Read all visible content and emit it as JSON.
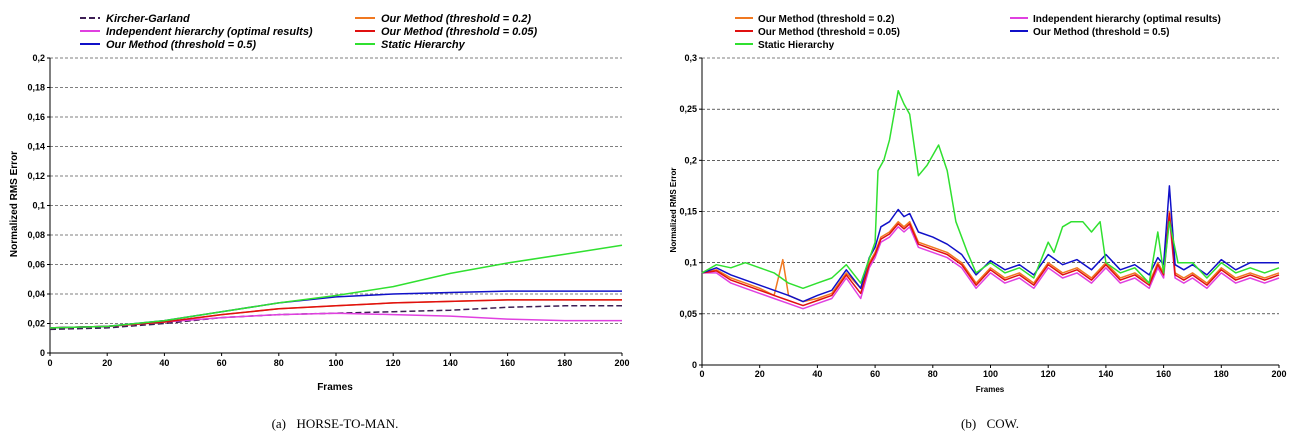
{
  "chart_data": [
    {
      "type": "line",
      "caption_prefix": "(a)",
      "caption": "HORSE-TO-MAN.",
      "xlabel": "Frames",
      "ylabel": "Normalized RMS Error",
      "xlim": [
        0,
        200
      ],
      "ylim": [
        0,
        0.2
      ],
      "xticks": [
        0,
        20,
        40,
        60,
        80,
        100,
        120,
        140,
        160,
        180,
        200
      ],
      "yticks": [
        0,
        0.02,
        0.04,
        0.06,
        0.08,
        0.1,
        0.12,
        0.14,
        0.16,
        0.18,
        0.2
      ],
      "ytick_labels": [
        "0",
        "0,02",
        "0,04",
        "0,06",
        "0,08",
        "0,1",
        "0,12",
        "0,14",
        "0,16",
        "0,18",
        "0,2"
      ],
      "grid": "horizontal dashed",
      "legend_position": "top",
      "legend_style": "italic",
      "series": [
        {
          "name": "Kircher-Garland",
          "color": "#3d1f54",
          "dashed": true,
          "x": [
            0,
            20,
            40,
            60,
            80,
            100,
            120,
            140,
            160,
            180,
            200
          ],
          "y": [
            0.016,
            0.017,
            0.02,
            0.024,
            0.026,
            0.027,
            0.028,
            0.029,
            0.031,
            0.032,
            0.032
          ]
        },
        {
          "name": "Our Method (threshold = 0.2)",
          "color": "#f07820",
          "x": [
            0,
            20,
            40,
            60,
            80,
            100,
            120,
            140,
            160,
            180,
            200
          ],
          "y": [
            0.017,
            0.018,
            0.021,
            0.026,
            0.03,
            0.032,
            0.034,
            0.035,
            0.036,
            0.036,
            0.036
          ]
        },
        {
          "name": "Independent hierarchy (optimal results)",
          "color": "#e040e0",
          "x": [
            0,
            20,
            40,
            60,
            80,
            100,
            120,
            140,
            160,
            180,
            200
          ],
          "y": [
            0.017,
            0.018,
            0.021,
            0.024,
            0.026,
            0.027,
            0.026,
            0.025,
            0.023,
            0.022,
            0.022
          ]
        },
        {
          "name": "Our Method (threshold = 0.05)",
          "color": "#e01010",
          "x": [
            0,
            20,
            40,
            60,
            80,
            100,
            120,
            140,
            160,
            180,
            200
          ],
          "y": [
            0.017,
            0.018,
            0.021,
            0.026,
            0.03,
            0.032,
            0.034,
            0.035,
            0.036,
            0.036,
            0.036
          ]
        },
        {
          "name": "Our Method (threshold = 0.5)",
          "color": "#1010c8",
          "x": [
            0,
            20,
            40,
            60,
            80,
            100,
            120,
            140,
            160,
            180,
            200
          ],
          "y": [
            0.017,
            0.018,
            0.022,
            0.028,
            0.034,
            0.038,
            0.04,
            0.041,
            0.042,
            0.042,
            0.042
          ]
        },
        {
          "name": "Static Hierarchy",
          "color": "#30e030",
          "x": [
            0,
            20,
            40,
            60,
            80,
            100,
            120,
            140,
            160,
            180,
            200
          ],
          "y": [
            0.017,
            0.018,
            0.022,
            0.028,
            0.034,
            0.039,
            0.045,
            0.054,
            0.061,
            0.067,
            0.073
          ]
        }
      ]
    },
    {
      "type": "line",
      "caption_prefix": "(b)",
      "caption": "COW.",
      "xlabel": "Frames",
      "ylabel": "Normalized RMS Error",
      "xlim": [
        0,
        200
      ],
      "ylim": [
        0,
        0.3
      ],
      "xticks": [
        0,
        20,
        40,
        60,
        80,
        100,
        120,
        140,
        160,
        180,
        200
      ],
      "yticks": [
        0,
        0.05,
        0.1,
        0.15,
        0.2,
        0.25,
        0.3
      ],
      "ytick_labels": [
        "0",
        "0,05",
        "0,1",
        "0,15",
        "0,2",
        "0,25",
        "0,3"
      ],
      "grid": "horizontal dashed",
      "legend_position": "top",
      "legend_style": "regular",
      "series": [
        {
          "name": "Our Method (threshold = 0.2)",
          "color": "#f07820",
          "x": [
            0,
            5,
            10,
            15,
            20,
            25,
            28,
            30,
            35,
            40,
            45,
            50,
            55,
            58,
            60,
            62,
            65,
            68,
            70,
            72,
            75,
            80,
            85,
            90,
            95,
            100,
            105,
            110,
            115,
            120,
            125,
            130,
            135,
            140,
            145,
            150,
            155,
            158,
            160,
            162,
            164,
            167,
            170,
            175,
            180,
            185,
            190,
            195,
            200
          ],
          "y": [
            0.09,
            0.093,
            0.085,
            0.08,
            0.075,
            0.068,
            0.103,
            0.068,
            0.062,
            0.065,
            0.07,
            0.09,
            0.075,
            0.1,
            0.11,
            0.125,
            0.13,
            0.14,
            0.135,
            0.14,
            0.12,
            0.115,
            0.11,
            0.1,
            0.08,
            0.095,
            0.085,
            0.09,
            0.08,
            0.1,
            0.09,
            0.095,
            0.085,
            0.1,
            0.085,
            0.09,
            0.08,
            0.1,
            0.09,
            0.15,
            0.09,
            0.085,
            0.09,
            0.08,
            0.095,
            0.085,
            0.09,
            0.085,
            0.09
          ]
        },
        {
          "name": "Independent hierarchy (optimal results)",
          "color": "#e040e0",
          "x": [
            0,
            5,
            10,
            15,
            20,
            25,
            30,
            35,
            40,
            45,
            50,
            55,
            58,
            60,
            62,
            65,
            68,
            70,
            72,
            75,
            80,
            85,
            90,
            95,
            100,
            105,
            110,
            115,
            120,
            125,
            130,
            135,
            140,
            145,
            150,
            155,
            158,
            160,
            162,
            164,
            167,
            170,
            175,
            180,
            185,
            190,
            195,
            200
          ],
          "y": [
            0.09,
            0.09,
            0.08,
            0.075,
            0.07,
            0.065,
            0.06,
            0.055,
            0.06,
            0.065,
            0.085,
            0.065,
            0.095,
            0.105,
            0.12,
            0.125,
            0.135,
            0.13,
            0.135,
            0.115,
            0.11,
            0.105,
            0.095,
            0.075,
            0.09,
            0.08,
            0.085,
            0.075,
            0.095,
            0.085,
            0.09,
            0.08,
            0.095,
            0.08,
            0.085,
            0.075,
            0.095,
            0.085,
            0.145,
            0.085,
            0.08,
            0.085,
            0.075,
            0.09,
            0.08,
            0.085,
            0.08,
            0.085
          ]
        },
        {
          "name": "Our Method (threshold = 0.05)",
          "color": "#e01010",
          "x": [
            0,
            5,
            10,
            15,
            20,
            25,
            30,
            35,
            40,
            45,
            50,
            55,
            58,
            60,
            62,
            65,
            68,
            70,
            72,
            75,
            80,
            85,
            90,
            95,
            100,
            105,
            110,
            115,
            120,
            125,
            130,
            135,
            140,
            145,
            150,
            155,
            158,
            160,
            162,
            164,
            167,
            170,
            175,
            180,
            185,
            190,
            195,
            200
          ],
          "y": [
            0.09,
            0.092,
            0.083,
            0.078,
            0.073,
            0.068,
            0.063,
            0.058,
            0.063,
            0.068,
            0.088,
            0.07,
            0.098,
            0.108,
            0.123,
            0.128,
            0.138,
            0.133,
            0.138,
            0.118,
            0.113,
            0.108,
            0.098,
            0.078,
            0.093,
            0.083,
            0.088,
            0.078,
            0.098,
            0.088,
            0.093,
            0.083,
            0.098,
            0.083,
            0.088,
            0.078,
            0.098,
            0.088,
            0.148,
            0.088,
            0.083,
            0.088,
            0.078,
            0.093,
            0.083,
            0.088,
            0.083,
            0.088
          ]
        },
        {
          "name": "Our Method (threshold = 0.5)",
          "color": "#1010c8",
          "x": [
            0,
            5,
            10,
            15,
            20,
            25,
            30,
            35,
            40,
            45,
            50,
            55,
            58,
            60,
            62,
            65,
            68,
            70,
            72,
            75,
            80,
            85,
            90,
            95,
            100,
            105,
            110,
            115,
            120,
            125,
            130,
            135,
            140,
            145,
            150,
            155,
            158,
            160,
            162,
            164,
            167,
            170,
            175,
            180,
            185,
            190,
            195,
            200
          ],
          "y": [
            0.09,
            0.095,
            0.088,
            0.083,
            0.078,
            0.073,
            0.068,
            0.062,
            0.068,
            0.073,
            0.093,
            0.075,
            0.105,
            0.115,
            0.135,
            0.14,
            0.152,
            0.145,
            0.148,
            0.13,
            0.125,
            0.118,
            0.108,
            0.088,
            0.102,
            0.093,
            0.098,
            0.088,
            0.108,
            0.098,
            0.103,
            0.093,
            0.108,
            0.093,
            0.098,
            0.088,
            0.105,
            0.098,
            0.175,
            0.098,
            0.093,
            0.098,
            0.088,
            0.103,
            0.093,
            0.1,
            0.1,
            0.1
          ]
        },
        {
          "name": "Static Hierarchy",
          "color": "#30e030",
          "x": [
            0,
            5,
            10,
            15,
            20,
            25,
            30,
            35,
            40,
            45,
            50,
            55,
            60,
            61,
            63,
            65,
            68,
            70,
            72,
            75,
            78,
            82,
            85,
            88,
            92,
            95,
            100,
            105,
            110,
            115,
            120,
            122,
            125,
            128,
            132,
            135,
            138,
            140,
            145,
            150,
            155,
            158,
            160,
            162,
            165,
            170,
            175,
            180,
            185,
            190,
            195,
            200
          ],
          "y": [
            0.09,
            0.098,
            0.095,
            0.1,
            0.095,
            0.09,
            0.08,
            0.075,
            0.08,
            0.085,
            0.098,
            0.08,
            0.12,
            0.19,
            0.2,
            0.22,
            0.268,
            0.255,
            0.245,
            0.185,
            0.195,
            0.215,
            0.19,
            0.14,
            0.11,
            0.09,
            0.1,
            0.09,
            0.095,
            0.085,
            0.12,
            0.11,
            0.135,
            0.14,
            0.14,
            0.13,
            0.14,
            0.1,
            0.09,
            0.095,
            0.08,
            0.13,
            0.09,
            0.14,
            0.1,
            0.1,
            0.085,
            0.1,
            0.09,
            0.095,
            0.09,
            0.095
          ]
        }
      ]
    }
  ]
}
